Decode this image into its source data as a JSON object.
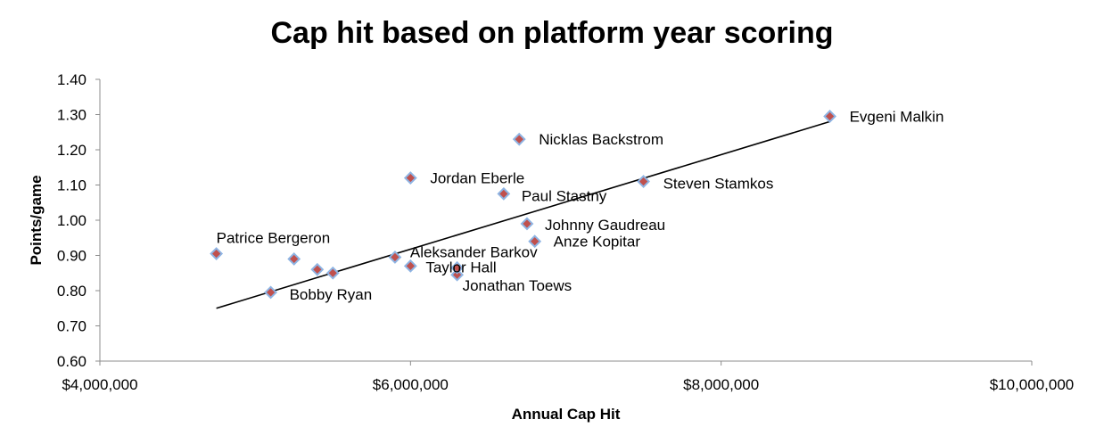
{
  "chart_data": {
    "type": "scatter",
    "title": "Cap hit based on platform year scoring",
    "xlabel": "Annual Cap Hit",
    "ylabel": "Points/game",
    "xlim": [
      4000000,
      10000000
    ],
    "ylim": [
      0.6,
      1.4
    ],
    "x_ticks": [
      {
        "value": 4000000,
        "label": "$4,000,000"
      },
      {
        "value": 6000000,
        "label": "$6,000,000"
      },
      {
        "value": 8000000,
        "label": "$8,000,000"
      },
      {
        "value": 10000000,
        "label": "$10,000,000"
      }
    ],
    "y_ticks": [
      {
        "value": 0.6,
        "label": "0.60"
      },
      {
        "value": 0.7,
        "label": "0.70"
      },
      {
        "value": 0.8,
        "label": "0.80"
      },
      {
        "value": 0.9,
        "label": "0.90"
      },
      {
        "value": 1.0,
        "label": "1.00"
      },
      {
        "value": 1.1,
        "label": "1.10"
      },
      {
        "value": 1.2,
        "label": "1.20"
      },
      {
        "value": 1.3,
        "label": "1.30"
      },
      {
        "value": 1.4,
        "label": "1.40"
      }
    ],
    "points": [
      {
        "x": 4750000,
        "y": 0.905,
        "label": "Patrice Bergeron"
      },
      {
        "x": 5250000,
        "y": 0.89,
        "label": ""
      },
      {
        "x": 5400000,
        "y": 0.86,
        "label": ""
      },
      {
        "x": 5500000,
        "y": 0.85,
        "label": ""
      },
      {
        "x": 5100000,
        "y": 0.795,
        "label": "Bobby Ryan"
      },
      {
        "x": 5900000,
        "y": 0.895,
        "label": "Aleksander Barkov"
      },
      {
        "x": 6000000,
        "y": 0.87,
        "label": "Taylor Hall"
      },
      {
        "x": 6300000,
        "y": 0.845,
        "label": "Jonathan Toews"
      },
      {
        "x": 6300000,
        "y": 0.865,
        "label": ""
      },
      {
        "x": 6000000,
        "y": 1.12,
        "label": "Jordan Eberle"
      },
      {
        "x": 6600000,
        "y": 1.075,
        "label": "Paul Stastny"
      },
      {
        "x": 6700000,
        "y": 1.23,
        "label": "Nicklas Backstrom"
      },
      {
        "x": 6750000,
        "y": 0.99,
        "label": "Johnny Gaudreau"
      },
      {
        "x": 6800000,
        "y": 0.94,
        "label": "Anze Kopitar"
      },
      {
        "x": 7500000,
        "y": 1.11,
        "label": "Steven Stamkos"
      },
      {
        "x": 8700000,
        "y": 1.295,
        "label": "Evgeni Malkin"
      }
    ],
    "trendline": {
      "type": "linear",
      "start": {
        "x": 4750000,
        "y": 0.75
      },
      "end": {
        "x": 8700000,
        "y": 1.28
      }
    },
    "marker": {
      "fill": "#c0504d",
      "stroke": "#8eb4e3"
    },
    "grid": false,
    "legend": "none"
  }
}
